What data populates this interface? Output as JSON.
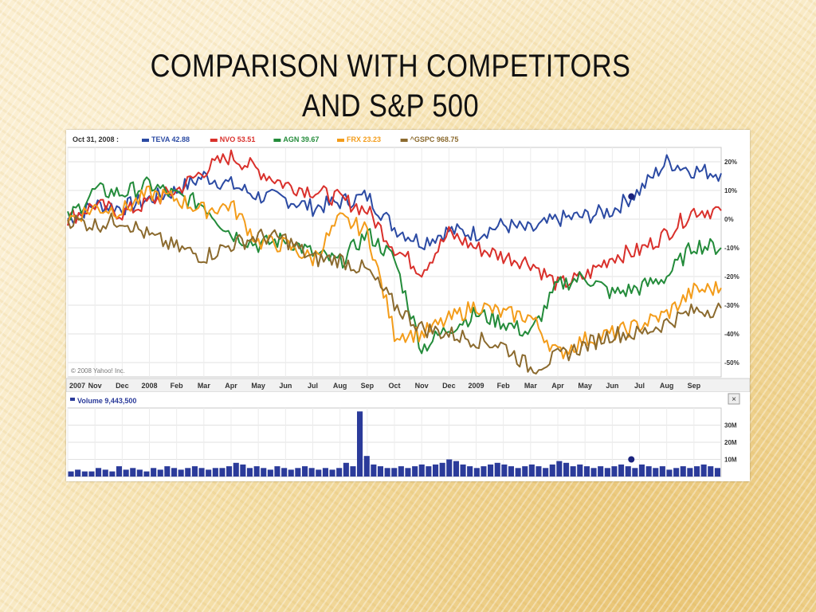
{
  "slide": {
    "title_line1": "COMPARISON WITH COMPETITORS",
    "title_line2": "AND S&P 500"
  },
  "chart_data": {
    "type": "line",
    "date_label": "Oct 31, 2008 :",
    "copyright": "© 2008 Yahoo! Inc.",
    "xlabels": [
      "2007",
      "Nov",
      "Dec",
      "2008",
      "Feb",
      "Mar",
      "Apr",
      "May",
      "Jun",
      "Jul",
      "Aug",
      "Sep",
      "Oct",
      "Nov",
      "Dec",
      "2009",
      "Feb",
      "Mar",
      "Apr",
      "May",
      "Jun",
      "Jul",
      "Aug",
      "Sep"
    ],
    "x": [
      "2007-10-01",
      "2007-11-01",
      "2007-12-01",
      "2008-01-01",
      "2008-02-01",
      "2008-03-01",
      "2008-04-01",
      "2008-05-01",
      "2008-06-01",
      "2008-07-01",
      "2008-08-01",
      "2008-09-01",
      "2008-10-01",
      "2008-11-01",
      "2008-12-01",
      "2009-01-01",
      "2009-02-01",
      "2009-03-01",
      "2009-04-01",
      "2009-05-01",
      "2009-06-01",
      "2009-07-01",
      "2009-08-01",
      "2009-09-01",
      "2009-09-30"
    ],
    "yticks": [
      "20%",
      "10%",
      "0%",
      "-10%",
      "-20%",
      "-30%",
      "-40%",
      "-50%"
    ],
    "ylim": [
      -55,
      25
    ],
    "series": [
      {
        "name": "TEVA",
        "value": "42.88",
        "color": "#2b4aa3",
        "values": [
          0,
          5,
          4,
          7,
          10,
          15,
          12,
          8,
          7,
          4,
          6,
          8,
          -3,
          -8,
          -4,
          -5,
          -2,
          -4,
          0,
          1,
          3,
          10,
          20,
          17,
          16
        ]
      },
      {
        "name": "NVO",
        "value": "53.51",
        "color": "#d9302b",
        "values": [
          0,
          5,
          2,
          6,
          10,
          17,
          22,
          17,
          12,
          10,
          7,
          3,
          -10,
          -18,
          -5,
          -10,
          -13,
          -15,
          -23,
          -20,
          -13,
          -11,
          -5,
          3,
          3
        ]
      },
      {
        "name": "AGN",
        "value": "39.67",
        "color": "#238b3a",
        "values": [
          0,
          10,
          9,
          12,
          8,
          5,
          -5,
          -9,
          -7,
          -12,
          -15,
          -5,
          -14,
          -45,
          -38,
          -33,
          -36,
          -40,
          -23,
          -20,
          -26,
          -24,
          -20,
          -9,
          -10
        ]
      },
      {
        "name": "FRX",
        "value": "23.23",
        "color": "#f39c1a",
        "values": [
          0,
          4,
          3,
          9,
          7,
          3,
          5,
          -8,
          -9,
          -14,
          0,
          -4,
          -40,
          -40,
          -35,
          -30,
          -33,
          -34,
          -47,
          -42,
          -40,
          -37,
          -33,
          -25,
          -24
        ]
      },
      {
        "name": "^GSPC",
        "value": "968.75",
        "color": "#8b6a2e",
        "values": [
          0,
          -2,
          0,
          -6,
          -10,
          -13,
          -9,
          -6,
          -7,
          -14,
          -14,
          -18,
          -30,
          -38,
          -40,
          -42,
          -44,
          -52,
          -48,
          -44,
          -40,
          -40,
          -36,
          -32,
          -31
        ]
      }
    ],
    "volume": {
      "label": "Volume",
      "value": "9,443,500",
      "color": "#2b3b9a",
      "yticks": [
        "30M",
        "20M",
        "10M"
      ],
      "ylim": [
        0,
        40
      ],
      "values": [
        3,
        4,
        3,
        3,
        5,
        4,
        3,
        6,
        4,
        5,
        4,
        3,
        5,
        4,
        6,
        5,
        4,
        5,
        6,
        5,
        4,
        5,
        5,
        6,
        8,
        7,
        5,
        6,
        5,
        4,
        6,
        5,
        4,
        5,
        6,
        5,
        4,
        5,
        4,
        5,
        8,
        6,
        38,
        12,
        7,
        6,
        5,
        5,
        6,
        5,
        6,
        7,
        6,
        7,
        8,
        10,
        9,
        7,
        6,
        5,
        6,
        7,
        8,
        7,
        6,
        5,
        6,
        7,
        6,
        5,
        7,
        9,
        8,
        6,
        7,
        6,
        5,
        6,
        5,
        6,
        7,
        6,
        5,
        7,
        6,
        5,
        6,
        4,
        5,
        6,
        5,
        6,
        7,
        6,
        5
      ]
    }
  }
}
